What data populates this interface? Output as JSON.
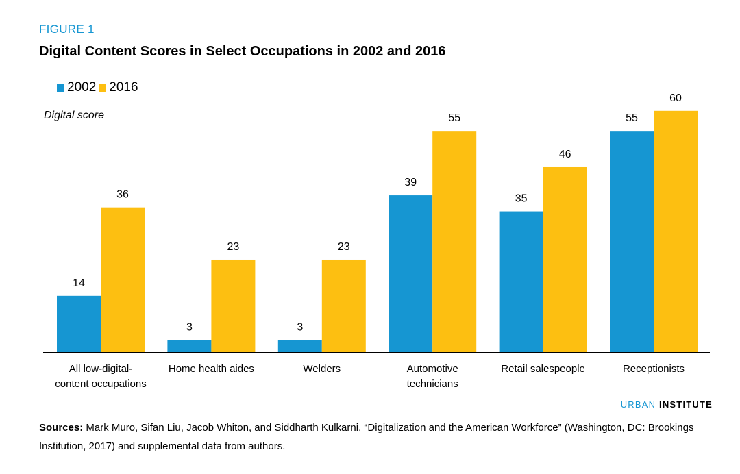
{
  "figure_label": "FIGURE 1",
  "title": "Digital Content Scores in Select Occupations in 2002 and 2016",
  "ylabel": "Digital score",
  "legend": [
    {
      "name": "2002",
      "color": "#1696d2"
    },
    {
      "name": "2016",
      "color": "#fdbf11"
    }
  ],
  "brand": {
    "part1": "URBAN",
    "part2": "INSTITUTE"
  },
  "sources": {
    "lead": "Sources:",
    "text": "Mark Muro, Sifan Liu, Jacob Whiton, and Siddharth Kulkarni, “Digitalization and the American Workforce” (Washington, DC: Brookings Institution, 2017) and supplemental data from authors."
  },
  "chart_data": {
    "type": "bar",
    "categories": [
      [
        "All low-digital-",
        "content occupations"
      ],
      [
        "Home health aides"
      ],
      [
        "Welders"
      ],
      [
        "Automotive",
        "technicians"
      ],
      [
        "Retail salespeople"
      ],
      [
        "Receptionists"
      ]
    ],
    "series": [
      {
        "name": "2002",
        "color": "#1696d2",
        "values": [
          14,
          3,
          3,
          39,
          35,
          55
        ]
      },
      {
        "name": "2016",
        "color": "#fdbf11",
        "values": [
          36,
          23,
          23,
          55,
          46,
          60
        ]
      }
    ],
    "ylabel": "Digital score",
    "ylim": [
      0,
      60
    ],
    "grid": false,
    "legend_position": "top-left"
  }
}
